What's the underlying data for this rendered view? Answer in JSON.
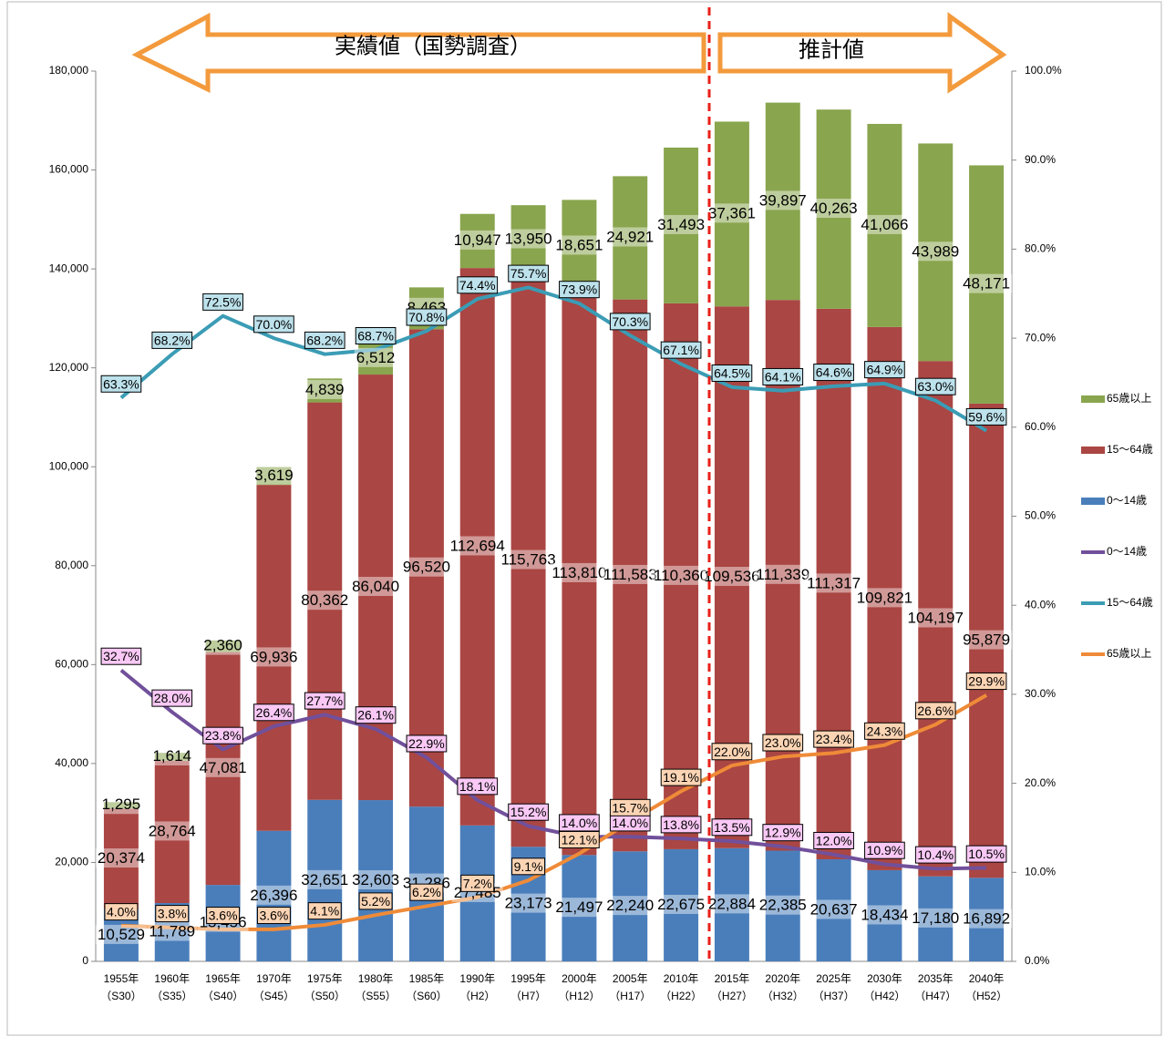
{
  "chart_data": {
    "type": "bar",
    "stacked": true,
    "annotations": [
      "実績値（国勢調査）",
      "推計値"
    ],
    "categories": [
      [
        "1955年",
        "（S30）"
      ],
      [
        "1960年",
        "（S35）"
      ],
      [
        "1965年",
        "（S40）"
      ],
      [
        "1970年",
        "（S45）"
      ],
      [
        "1975年",
        "（S50）"
      ],
      [
        "1980年",
        "（S55）"
      ],
      [
        "1985年",
        "（S60）"
      ],
      [
        "1990年",
        "（H2）"
      ],
      [
        "1995年",
        "（H7）"
      ],
      [
        "2000年",
        "（H12）"
      ],
      [
        "2005年",
        "（H17）"
      ],
      [
        "2010年",
        "（H22）"
      ],
      [
        "2015年",
        "（H27）"
      ],
      [
        "2020年",
        "（H32）"
      ],
      [
        "2025年",
        "（H37）"
      ],
      [
        "2030年",
        "（H42）"
      ],
      [
        "2035年",
        "（H47）"
      ],
      [
        "2040年",
        "（H52）"
      ]
    ],
    "ylim": [
      0,
      180000
    ],
    "yticks": [
      0,
      {
        "value": 20000,
        "label": "20,000"
      },
      {
        "value": 40000,
        "label": "40,000"
      },
      {
        "value": 60000,
        "label": "60,000"
      },
      {
        "value": 80000,
        "label": "80,000"
      },
      {
        "value": 100000,
        "label": "100,000"
      },
      {
        "value": 120000,
        "label": "120,000"
      },
      {
        "value": 140000,
        "label": "140,000"
      },
      {
        "value": 160000,
        "label": "160,000"
      },
      {
        "value": 180000,
        "label": "180,000"
      }
    ],
    "y2lim": [
      0,
      100
    ],
    "y2ticks": [
      {
        "value": 0,
        "label": "0.0%"
      },
      {
        "value": 10,
        "label": "10.0%"
      },
      {
        "value": 20,
        "label": "20.0%"
      },
      {
        "value": 30,
        "label": "30.0%"
      },
      {
        "value": 40,
        "label": "40.0%"
      },
      {
        "value": 50,
        "label": "50.0%"
      },
      {
        "value": 60,
        "label": "60.0%"
      },
      {
        "value": 70,
        "label": "70.0%"
      },
      {
        "value": 80,
        "label": "80.0%"
      },
      {
        "value": 90,
        "label": "90.0%"
      },
      {
        "value": 100,
        "label": "100.0%"
      }
    ],
    "grid": false,
    "legend": "right",
    "series": [
      {
        "name": "0～14歳",
        "type": "bar",
        "color": "#4a7ebb",
        "values": [
          10529,
          11789,
          15456,
          26396,
          32651,
          32603,
          31286,
          27485,
          23173,
          21497,
          22240,
          22675,
          22884,
          22385,
          20637,
          18434,
          17180,
          16892
        ],
        "value_labels": [
          "10,529",
          "11,789",
          "15,456",
          "26,396",
          "32,651",
          "32,603",
          "31,286",
          "27,485",
          "23,173",
          "21,497",
          "22,240",
          "22,675",
          "22,884",
          "22,385",
          "20,637",
          "18,434",
          "17,180",
          "16,892"
        ]
      },
      {
        "name": "15～64歳",
        "type": "bar",
        "color": "#aa4643",
        "values": [
          20374,
          28764,
          47081,
          69936,
          80362,
          86040,
          96520,
          112694,
          115763,
          113810,
          111583,
          110360,
          109536,
          111339,
          111317,
          109821,
          104197,
          95879
        ],
        "value_labels": [
          "20,374",
          "28,764",
          "47,081",
          "69,936",
          "80,362",
          "86,040",
          "96,520",
          "112,694",
          "115,763",
          "113,810",
          "111,583",
          "110,360",
          "109,536",
          "111,339",
          "111,317",
          "109,821",
          "104,197",
          "95,879"
        ]
      },
      {
        "name": "65歳以上",
        "type": "bar",
        "color": "#89a54e",
        "values": [
          1295,
          1614,
          2360,
          3619,
          4839,
          6512,
          8463,
          10947,
          13950,
          18651,
          24921,
          31493,
          37361,
          39897,
          40263,
          41066,
          43989,
          48171
        ],
        "value_labels": [
          "1,295",
          "1,614",
          "2,360",
          "3,619",
          "4,839",
          "6,512",
          "8,463",
          "10,947",
          "13,950",
          "18,651",
          "24,921",
          "31,493",
          "37,361",
          "39,897",
          "40,263",
          "41,066",
          "43,989",
          "48,171"
        ]
      },
      {
        "name": "0～14歳",
        "type": "line",
        "axis": "y2",
        "color": "#71509b",
        "label_fill": "#f9c8f5",
        "values": [
          32.7,
          28.0,
          23.8,
          26.4,
          27.7,
          26.1,
          22.9,
          18.1,
          15.2,
          14.0,
          14.0,
          13.8,
          13.5,
          12.9,
          12.0,
          10.9,
          10.4,
          10.5
        ],
        "value_labels": [
          "32.7%",
          "28.0%",
          "23.8%",
          "26.4%",
          "27.7%",
          "26.1%",
          "22.9%",
          "18.1%",
          "15.2%",
          "14.0%",
          "14.0%",
          "13.8%",
          "13.5%",
          "12.9%",
          "12.0%",
          "10.9%",
          "10.4%",
          "10.5%"
        ]
      },
      {
        "name": "15～64歳",
        "type": "line",
        "axis": "y2",
        "color": "#3b9cb5",
        "label_fill": "#bde2ec",
        "values": [
          63.3,
          68.2,
          72.5,
          70.0,
          68.2,
          68.7,
          70.8,
          74.4,
          75.7,
          73.9,
          70.3,
          67.1,
          64.5,
          64.1,
          64.6,
          64.9,
          63.0,
          59.6
        ],
        "value_labels": [
          "63.3%",
          "68.2%",
          "72.5%",
          "70.0%",
          "68.2%",
          "68.7%",
          "70.8%",
          "74.4%",
          "75.7%",
          "73.9%",
          "70.3%",
          "67.1%",
          "64.5%",
          "64.1%",
          "64.6%",
          "64.9%",
          "63.0%",
          "59.6%"
        ]
      },
      {
        "name": "65歳以上",
        "type": "line",
        "axis": "y2",
        "color": "#ef8b38",
        "label_fill": "#fbd4b4",
        "values": [
          4.0,
          3.8,
          3.6,
          3.6,
          4.1,
          5.2,
          6.2,
          7.2,
          9.1,
          12.1,
          15.7,
          19.1,
          22.0,
          23.0,
          23.4,
          24.3,
          26.6,
          29.9
        ],
        "value_labels": [
          "4.0%",
          "3.8%",
          "3.6%",
          "3.6%",
          "4.1%",
          "5.2%",
          "6.2%",
          "7.2%",
          "9.1%",
          "12.1%",
          "15.7%",
          "19.1%",
          "22.0%",
          "23.0%",
          "23.4%",
          "24.3%",
          "26.6%",
          "29.9%"
        ]
      }
    ]
  }
}
